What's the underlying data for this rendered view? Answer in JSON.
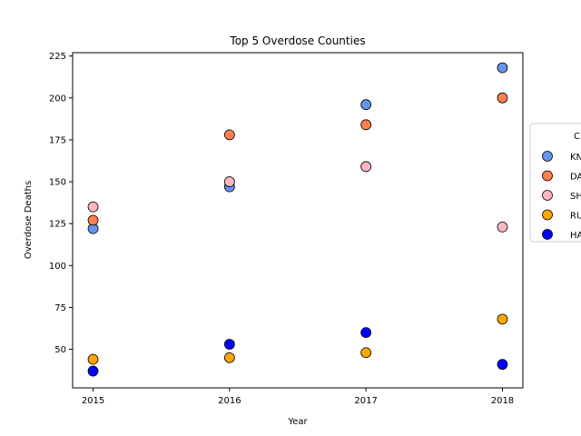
{
  "chart_data": {
    "type": "scatter",
    "title": "Top 5 Overdose Counties",
    "xlabel": "Year",
    "ylabel": "Overdose Deaths",
    "x": [
      2015,
      2016,
      2017,
      2018
    ],
    "x_ticks": [
      "2015",
      "2016",
      "2017",
      "2018"
    ],
    "xlim": [
      2014.85,
      2018.15
    ],
    "ylim": [
      27,
      227
    ],
    "y_ticks": [
      50,
      75,
      100,
      125,
      150,
      175,
      200,
      225
    ],
    "grid": false,
    "legend": {
      "placement": "center-right",
      "title": "C",
      "labels": [
        "KN",
        "DA",
        "SH",
        "RU",
        "HA"
      ]
    },
    "series": [
      {
        "name": "KN",
        "color": "#6495ED",
        "values": [
          122,
          147,
          196,
          218
        ]
      },
      {
        "name": "DA",
        "color": "#FF7F50",
        "values": [
          127,
          178,
          184,
          200
        ]
      },
      {
        "name": "SH",
        "color": "#FFB6C1",
        "values": [
          135,
          150,
          159,
          123
        ]
      },
      {
        "name": "RU",
        "color": "#FFA500",
        "values": [
          44,
          45,
          48,
          68
        ]
      },
      {
        "name": "HA",
        "color": "#0000FF",
        "values": [
          37,
          53,
          60,
          41
        ]
      }
    ]
  }
}
